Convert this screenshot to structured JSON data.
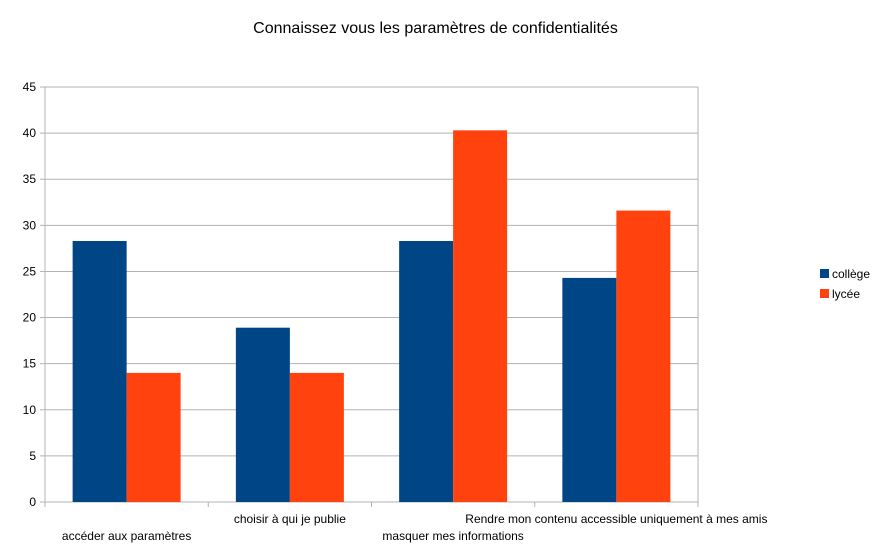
{
  "chart_data": {
    "type": "bar",
    "title": "Connaissez vous les paramètres de confidentialités",
    "xlabel": "",
    "ylabel": "",
    "ylim": [
      0,
      45
    ],
    "yticks": [
      0,
      5,
      10,
      15,
      20,
      25,
      30,
      35,
      40,
      45
    ],
    "grid": true,
    "legend_position": "right",
    "categories": [
      "accéder aux paramètres",
      "choisir à qui je publie",
      "masquer mes informations",
      "Rendre mon contenu accessible uniquement à mes amis"
    ],
    "series": [
      {
        "name": "collège",
        "color": "#004586",
        "values": [
          28.3,
          18.9,
          28.3,
          24.3
        ]
      },
      {
        "name": "lycée",
        "color": "#ff420e",
        "values": [
          14,
          14,
          40.3,
          31.6
        ]
      }
    ]
  }
}
